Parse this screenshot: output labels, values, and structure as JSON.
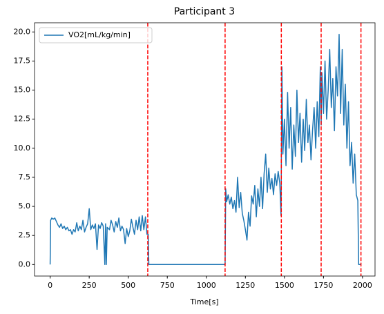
{
  "chart_data": {
    "type": "line",
    "title": "Participant 3",
    "x_label": "Time[s]",
    "x": [
      0,
      3,
      10,
      20,
      30,
      40,
      50,
      60,
      70,
      80,
      90,
      100,
      110,
      120,
      130,
      140,
      150,
      160,
      170,
      180,
      190,
      200,
      210,
      220,
      230,
      240,
      250,
      260,
      270,
      280,
      290,
      300,
      310,
      320,
      330,
      340,
      350,
      355,
      360,
      365,
      380,
      390,
      400,
      410,
      420,
      430,
      440,
      450,
      460,
      470,
      480,
      490,
      500,
      510,
      520,
      530,
      540,
      550,
      560,
      570,
      580,
      590,
      600,
      610,
      620,
      628,
      632,
      1120,
      1124,
      1130,
      1140,
      1150,
      1160,
      1170,
      1180,
      1190,
      1200,
      1210,
      1220,
      1230,
      1240,
      1250,
      1260,
      1270,
      1280,
      1290,
      1300,
      1310,
      1320,
      1330,
      1340,
      1350,
      1360,
      1370,
      1380,
      1390,
      1400,
      1410,
      1420,
      1430,
      1440,
      1450,
      1460,
      1470,
      1478,
      1484,
      1490,
      1500,
      1510,
      1520,
      1530,
      1540,
      1550,
      1560,
      1570,
      1580,
      1590,
      1600,
      1610,
      1620,
      1630,
      1640,
      1650,
      1660,
      1670,
      1680,
      1690,
      1700,
      1710,
      1720,
      1730,
      1735,
      1740,
      1750,
      1760,
      1770,
      1780,
      1790,
      1800,
      1810,
      1820,
      1830,
      1840,
      1850,
      1860,
      1870,
      1880,
      1890,
      1900,
      1910,
      1920,
      1930,
      1940,
      1950,
      1960,
      1970,
      1975,
      1990
    ],
    "series": [
      {
        "name": "VO2[mL/kg/min]",
        "color": "#1f77b4",
        "values": [
          0,
          3.8,
          4.0,
          3.9,
          4.0,
          3.7,
          3.4,
          3.2,
          3.5,
          3.1,
          3.3,
          3.0,
          3.2,
          2.9,
          3.0,
          2.6,
          3.0,
          2.8,
          3.6,
          2.9,
          3.3,
          3.0,
          3.8,
          2.8,
          3.2,
          3.5,
          4.8,
          3.0,
          3.4,
          3.1,
          3.5,
          1.3,
          3.4,
          3.1,
          3.6,
          3.3,
          0,
          3.5,
          0,
          3.2,
          3.0,
          3.8,
          3.4,
          2.8,
          3.7,
          3.2,
          4.0,
          2.9,
          3.3,
          3.0,
          1.8,
          3.1,
          2.4,
          2.9,
          3.9,
          3.2,
          2.6,
          3.8,
          3.0,
          4.1,
          2.9,
          4.2,
          3.0,
          4.1,
          2.6,
          2.6,
          0,
          0,
          6.5,
          5.4,
          6.0,
          5.2,
          5.8,
          4.8,
          5.5,
          4.5,
          7.5,
          4.9,
          6.2,
          4.4,
          3.8,
          3.0,
          2.1,
          4.5,
          3.3,
          5.9,
          5.2,
          6.8,
          4.1,
          6.5,
          5.0,
          7.5,
          4.8,
          7.8,
          9.5,
          6.2,
          8.3,
          6.5,
          7.4,
          6.0,
          7.8,
          6.8,
          8.0,
          7.0,
          4.2,
          17.0,
          9.5,
          12.5,
          8.5,
          14.8,
          10.0,
          13.5,
          8.2,
          12.0,
          9.3,
          15.0,
          10.5,
          13.0,
          8.8,
          12.5,
          9.8,
          14.2,
          10.5,
          12.0,
          9.0,
          11.5,
          13.5,
          10.0,
          14.0,
          11.0,
          17.0,
          12.0,
          16.5,
          13.0,
          17.5,
          12.5,
          15.0,
          18.5,
          13.5,
          16.0,
          11.5,
          17.0,
          14.5,
          19.8,
          13.0,
          18.5,
          12.0,
          15.5,
          10.0,
          14.0,
          8.5,
          10.5,
          7.0,
          9.5,
          6.0,
          5.5,
          0,
          0
        ]
      }
    ],
    "vlines": {
      "x": [
        625,
        1120,
        1480,
        1735,
        1990
      ],
      "color": "red",
      "style": "dashed"
    },
    "xlim": [
      -100,
      2080
    ],
    "ylim": [
      -0.99,
      20.79
    ],
    "xticks": [
      0,
      250,
      500,
      750,
      1000,
      1250,
      1500,
      1750,
      2000
    ],
    "yticks": [
      {
        "value": 0,
        "label": "0.0"
      },
      {
        "value": 2.5,
        "label": "2.5"
      },
      {
        "value": 5,
        "label": "5.0"
      },
      {
        "value": 7.5,
        "label": "7.5"
      },
      {
        "value": 10,
        "label": "10.0"
      },
      {
        "value": 12.5,
        "label": "12.5"
      },
      {
        "value": 15,
        "label": "15.0"
      },
      {
        "value": 17.5,
        "label": "17.5"
      },
      {
        "value": 20,
        "label": "20.0"
      }
    ],
    "legend": "upper left"
  }
}
